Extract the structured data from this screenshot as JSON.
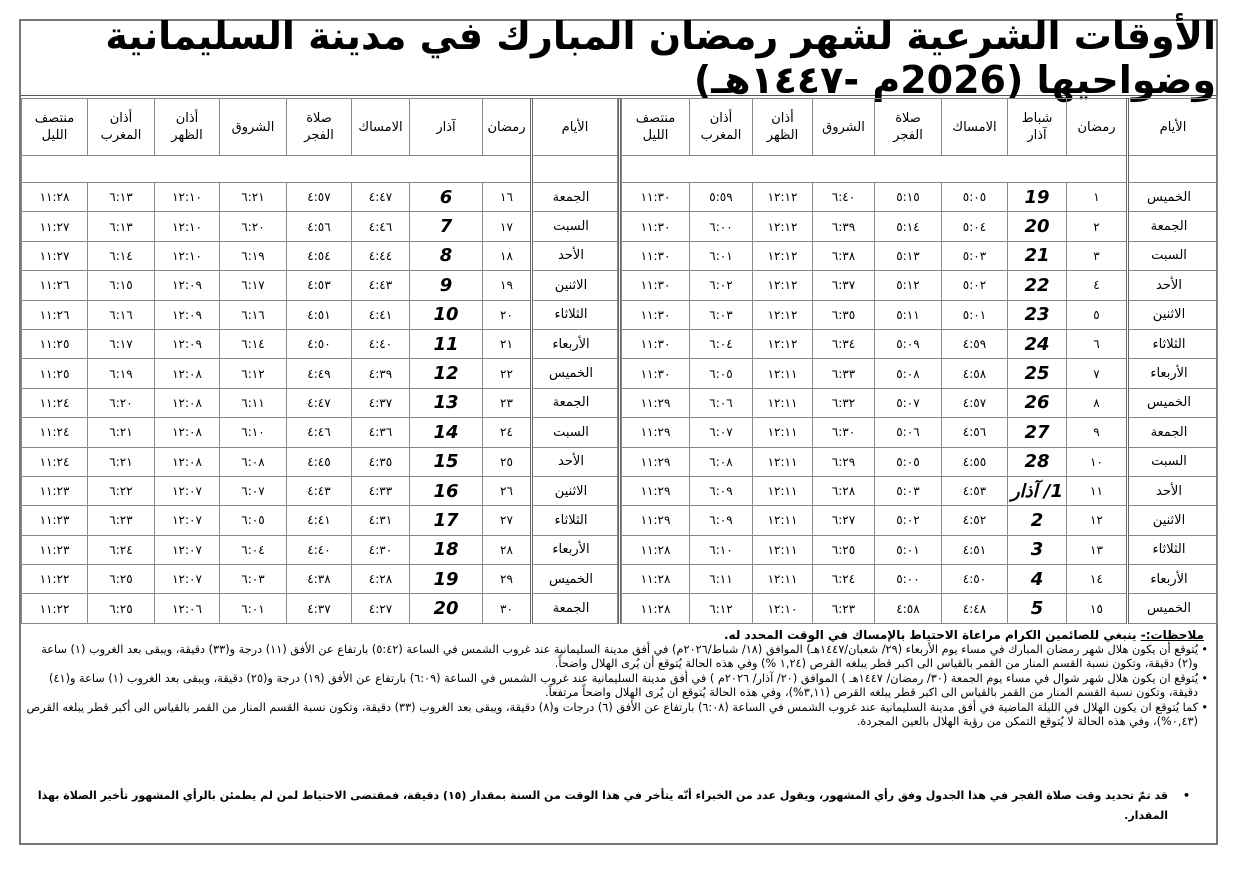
{
  "title": "الأوقات الشرعية لشهر رمضان المبارك في مدينة السليمانية وضواحيها (2026م -١٤٤٧هـ)",
  "right_table": {
    "headers": [
      "الأيام",
      "رمضان",
      "شباط\nآذار",
      "الامساك",
      "صلاة\nالفجر",
      "الشروق",
      "أذان\nالظهر",
      "أذان\nالمغرب",
      "منتصف\nالليل"
    ],
    "rows": [
      [
        "الخميس",
        "١",
        "19",
        "٥:٠٥",
        "٥:١٥",
        "٦:٤٠",
        "١٢:١٢",
        "٥:٥٩",
        "١١:٣٠"
      ],
      [
        "الجمعة",
        "٢",
        "20",
        "٥:٠٤",
        "٥:١٤",
        "٦:٣٩",
        "١٢:١٢",
        "٦:٠٠",
        "١١:٣٠"
      ],
      [
        "السبت",
        "٣",
        "21",
        "٥:٠٣",
        "٥:١٣",
        "٦:٣٨",
        "١٢:١٢",
        "٦:٠١",
        "١١:٣٠"
      ],
      [
        "الأحد",
        "٤",
        "22",
        "٥:٠٢",
        "٥:١٢",
        "٦:٣٧",
        "١٢:١٢",
        "٦:٠٢",
        "١١:٣٠"
      ],
      [
        "الاثنين",
        "٥",
        "23",
        "٥:٠١",
        "٥:١١",
        "٦:٣٥",
        "١٢:١٢",
        "٦:٠٣",
        "١١:٣٠"
      ],
      [
        "الثلاثاء",
        "٦",
        "24",
        "٤:٥٩",
        "٥:٠٩",
        "٦:٣٤",
        "١٢:١٢",
        "٦:٠٤",
        "١١:٣٠"
      ],
      [
        "الأربعاء",
        "٧",
        "25",
        "٤:٥٨",
        "٥:٠٨",
        "٦:٣٣",
        "١٢:١١",
        "٦:٠٥",
        "١١:٣٠"
      ],
      [
        "الخميس",
        "٨",
        "26",
        "٤:٥٧",
        "٥:٠٧",
        "٦:٣٢",
        "١٢:١١",
        "٦:٠٦",
        "١١:٢٩"
      ],
      [
        "الجمعة",
        "٩",
        "27",
        "٤:٥٦",
        "٥:٠٦",
        "٦:٣٠",
        "١٢:١١",
        "٦:٠٧",
        "١١:٢٩"
      ],
      [
        "السبت",
        "١٠",
        "28",
        "٤:٥٥",
        "٥:٠٥",
        "٦:٢٩",
        "١٢:١١",
        "٦:٠٨",
        "١١:٢٩"
      ],
      [
        "الأحد",
        "١١",
        "1/ آذار",
        "٤:٥٣",
        "٥:٠٣",
        "٦:٢٨",
        "١٢:١١",
        "٦:٠٩",
        "١١:٢٩"
      ],
      [
        "الاثنين",
        "١٢",
        "2",
        "٤:٥٢",
        "٥:٠٢",
        "٦:٢٧",
        "١٢:١١",
        "٦:٠٩",
        "١١:٢٩"
      ],
      [
        "الثلاثاء",
        "١٣",
        "3",
        "٤:٥١",
        "٥:٠١",
        "٦:٢٥",
        "١٢:١١",
        "٦:١٠",
        "١١:٢٨"
      ],
      [
        "الأربعاء",
        "١٤",
        "4",
        "٤:٥٠",
        "٥:٠٠",
        "٦:٢٤",
        "١٢:١١",
        "٦:١١",
        "١١:٢٨"
      ],
      [
        "الخميس",
        "١٥",
        "5",
        "٤:٤٨",
        "٤:٥٨",
        "٦:٢٣",
        "١٢:١٠",
        "٦:١٢",
        "١١:٢٨"
      ]
    ]
  },
  "left_table": {
    "headers": [
      "الأيام",
      "رمضان",
      "آذار",
      "الامساك",
      "صلاة\nالفجر",
      "الشروق",
      "أذان\nالظهر",
      "أذان\nالمغرب",
      "منتصف\nالليل"
    ],
    "rows": [
      [
        "الجمعة",
        "١٦",
        "6",
        "٤:٤٧",
        "٤:٥٧",
        "٦:٢١",
        "١٢:١٠",
        "٦:١٣",
        "١١:٢٨"
      ],
      [
        "السبت",
        "١٧",
        "7",
        "٤:٤٦",
        "٤:٥٦",
        "٦:٢٠",
        "١٢:١٠",
        "٦:١٣",
        "١١:٢٧"
      ],
      [
        "الأحد",
        "١٨",
        "8",
        "٤:٤٤",
        "٤:٥٤",
        "٦:١٩",
        "١٢:١٠",
        "٦:١٤",
        "١١:٢٧"
      ],
      [
        "الاثنين",
        "١٩",
        "9",
        "٤:٤٣",
        "٤:٥٣",
        "٦:١٧",
        "١٢:٠٩",
        "٦:١٥",
        "١١:٢٦"
      ],
      [
        "الثلاثاء",
        "٢٠",
        "10",
        "٤:٤١",
        "٤:٥١",
        "٦:١٦",
        "١٢:٠٩",
        "٦:١٦",
        "١١:٢٦"
      ],
      [
        "الأربعاء",
        "٢١",
        "11",
        "٤:٤٠",
        "٤:٥٠",
        "٦:١٤",
        "١٢:٠٩",
        "٦:١٧",
        "١١:٢٥"
      ],
      [
        "الخميس",
        "٢٢",
        "12",
        "٤:٣٩",
        "٤:٤٩",
        "٦:١٢",
        "١٢:٠٨",
        "٦:١٩",
        "١١:٢٥"
      ],
      [
        "الجمعة",
        "٢٣",
        "13",
        "٤:٣٧",
        "٤:٤٧",
        "٦:١١",
        "١٢:٠٨",
        "٦:٢٠",
        "١١:٢٤"
      ],
      [
        "السبت",
        "٢٤",
        "14",
        "٤:٣٦",
        "٤:٤٦",
        "٦:١٠",
        "١٢:٠٨",
        "٦:٢١",
        "١١:٢٤"
      ],
      [
        "الأحد",
        "٢٥",
        "15",
        "٤:٣٥",
        "٤:٤٥",
        "٦:٠٨",
        "١٢:٠٨",
        "٦:٢١",
        "١١:٢٤"
      ],
      [
        "الاثنين",
        "٢٦",
        "16",
        "٤:٣٣",
        "٤:٤٣",
        "٦:٠٧",
        "١٢:٠٧",
        "٦:٢٢",
        "١١:٢٣"
      ],
      [
        "الثلاثاء",
        "٢٧",
        "17",
        "٤:٣١",
        "٤:٤١",
        "٦:٠٥",
        "١٢:٠٧",
        "٦:٢٣",
        "١١:٢٣"
      ],
      [
        "الأربعاء",
        "٢٨",
        "18",
        "٤:٣٠",
        "٤:٤٠",
        "٦:٠٤",
        "١٢:٠٧",
        "٦:٢٤",
        "١١:٢٣"
      ],
      [
        "الخميس",
        "٢٩",
        "19",
        "٤:٢٨",
        "٤:٣٨",
        "٦:٠٣",
        "١٢:٠٧",
        "٦:٢٥",
        "١١:٢٢"
      ],
      [
        "الجمعة",
        "٣٠",
        "20",
        "٤:٢٧",
        "٤:٣٧",
        "٦:٠١",
        "١٢:٠٦",
        "٦:٢٥",
        "١١:٢٢"
      ]
    ]
  },
  "notes": {
    "label": "ملاحظات:-",
    "intro": "ينبغي للصائمين الكرام مراعاة الاحتياط بالإمساك في الوقت المحدد له.",
    "items": [
      "يُتوقع أن يكون هلال شهر رمضان المبارك في مساء يوم الأربعاء (٢٩/ شعبان/١٤٤٧هـ) الموافق (١٨/ شباط/٢٠٢٦م) في أفق مدينة السليمانية عند غروب الشمس في الساعة (٥:٤٢) بارتفاع عن الأفق (١١) درجة و(٣٣) دقيقة، ويبقى بعد الغروب (١) ساعة و(٢) دقيقة، وتكون نسبة القسم المنار من القمر بالقياس الى اكبر قطر يبلغه القرص (١,٢٤ %) وفي هذه الحالة يُتوقع أن يُرى الهلال واضحاً.",
      "يُتوقع ان يكون هلال شهر شوال في مساء يوم الجمعة (٣٠/ رمضان/ ١٤٤٧هـ ) الموافق (٢٠/ آذار/ ٢٠٢٦م ) في أفق مدينة السليمانية عند غروب الشمس في الساعة (٦:٠٩) بارتفاع عن الأفق (١٩) درجة و(٢٥) دقيقة، ويبقى بعد الغروب (١) ساعة و(٤١) دقيقة، وتكون نسبة القسم المنار من القمر بالقياس الى اكبر قطر يبلغه القرص (٣,١١%)، وفي هذه الحالة يُتوقع ان يُرى الهلال واضحاً مرتفعاً.",
      "كما يُتوقع ان يكون الهلال في الليلة الماضية في أفق مدينة السليمانية عند غروب الشمس في الساعة (٦:٠٨) بارتفاع عن الأفق (٦) درجات و(٨) دقيقة، ويبقى بعد الغروب (٣٣) دقيقة، وتكون نسبة القسم المنار من القمر بالقياس الى أكبر قطر يبلغه القرص (٠,٤٣%)، وفي هذه الحالة لا يُتوقع التمكن من رؤية الهلال بالعين المجردة."
    ],
    "final": "قد تمّ تحديد وقت صلاة الفجر في هذا الجدول وفق رأي المشهور، ويقول عدد من الخبراء أنّه يتأخر في هذا الوقت من السنة بمقدار (١٥) دقيقة، فمقتضى الاحتياط لمن لم يطمئن بالرأي المشهور تأخير الصلاة بهذا المقدار."
  }
}
